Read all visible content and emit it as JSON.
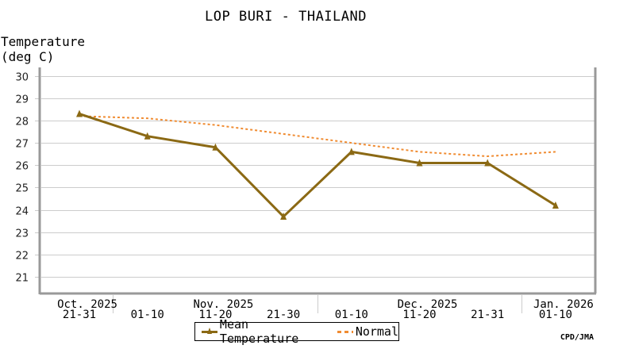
{
  "title": "LOP BURI - THAILAND",
  "ylabel_line1": "Temperature",
  "ylabel_line2": "(deg C)",
  "credit": "CPD/JMA",
  "legend": {
    "mean": "Mean Temperature",
    "normal": "Normal"
  },
  "colors": {
    "mean": "#8b6914",
    "normal": "#f08c32",
    "grid": "#cccccc",
    "frame": "#999999"
  },
  "chart_data": {
    "type": "line",
    "title": "LOP BURI - THAILAND",
    "xlabel": "",
    "ylabel": "Temperature (deg C)",
    "ylim": [
      20.3,
      30.3
    ],
    "yticks": [
      21,
      22,
      23,
      24,
      25,
      26,
      27,
      28,
      29,
      30
    ],
    "grid": true,
    "legend_position": "bottom",
    "categories": [
      "21-31",
      "01-10",
      "11-20",
      "21-30",
      "01-10",
      "11-20",
      "21-31",
      "01-10"
    ],
    "month_labels": [
      {
        "label": "Oct. 2025",
        "index": 0
      },
      {
        "label": "Nov. 2025",
        "index": 2
      },
      {
        "label": "Dec. 2025",
        "index": 5
      },
      {
        "label": "Jan. 2026",
        "index": 7
      }
    ],
    "series": [
      {
        "name": "Mean Temperature",
        "style": "solid-triangle-markers",
        "values": [
          28.3,
          27.3,
          26.8,
          23.7,
          26.6,
          26.1,
          26.1,
          24.2
        ]
      },
      {
        "name": "Normal",
        "style": "dashed",
        "values": [
          28.2,
          28.1,
          27.8,
          27.4,
          27.0,
          26.6,
          26.4,
          26.6
        ]
      }
    ]
  }
}
